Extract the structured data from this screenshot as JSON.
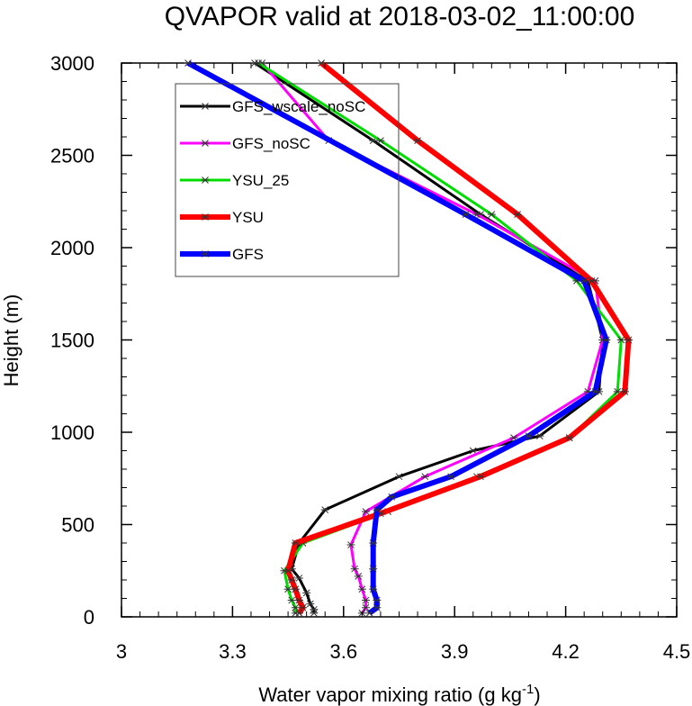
{
  "chart_data": {
    "type": "line",
    "title": "QVAPOR valid at 2018-03-02_11:00:00",
    "xlabel": "Water vapor mixing ratio (g kg",
    "xlabel_sup": "-1",
    "xlabel_end": ")",
    "ylabel": "Height (m)",
    "xlim": [
      3.0,
      4.5
    ],
    "ylim": [
      0,
      3000
    ],
    "xticks": [
      3.0,
      3.3,
      3.6,
      3.9,
      4.2,
      4.5
    ],
    "xtick_labels": [
      "3",
      "3.3",
      "3.6",
      "3.9",
      "4.2",
      "4.5"
    ],
    "yticks": [
      0,
      500,
      1000,
      1500,
      2000,
      2500,
      3000
    ],
    "ytick_labels": [
      "0",
      "500",
      "1000",
      "1500",
      "2000",
      "2500",
      "3000"
    ],
    "grid": false,
    "legend_position": "top-left",
    "series": [
      {
        "name": "GFS_wscale_noSC",
        "color": "#000000",
        "width": 3,
        "x": [
          3.52,
          3.52,
          3.51,
          3.5,
          3.48,
          3.46,
          3.48,
          3.55,
          3.75,
          3.95,
          4.13,
          4.29,
          4.3,
          4.26,
          3.97,
          3.68,
          3.36
        ],
        "y": [
          20,
          40,
          70,
          130,
          210,
          260,
          400,
          580,
          760,
          900,
          980,
          1220,
          1500,
          1820,
          2180,
          2580,
          3000
        ]
      },
      {
        "name": "GFS_noSC",
        "color": "#ff00ff",
        "width": 3,
        "x": [
          3.65,
          3.66,
          3.66,
          3.65,
          3.64,
          3.63,
          3.62,
          3.66,
          3.82,
          4.06,
          4.26,
          4.3,
          4.28,
          3.96,
          3.56,
          3.38
        ],
        "y": [
          20,
          50,
          90,
          150,
          220,
          260,
          390,
          570,
          760,
          970,
          1220,
          1500,
          1820,
          2180,
          2580,
          3000
        ]
      },
      {
        "name": "YSU_25",
        "color": "#00dd00",
        "width": 3,
        "x": [
          3.47,
          3.47,
          3.46,
          3.45,
          3.44,
          3.49,
          3.72,
          3.96,
          4.21,
          4.34,
          4.35,
          4.23,
          4.0,
          3.7,
          3.37
        ],
        "y": [
          20,
          50,
          90,
          150,
          250,
          400,
          570,
          760,
          970,
          1220,
          1500,
          1820,
          2180,
          2580,
          3000
        ]
      },
      {
        "name": "YSU",
        "color": "#ff0000",
        "width": 6,
        "x": [
          3.48,
          3.49,
          3.48,
          3.47,
          3.46,
          3.45,
          3.47,
          3.7,
          3.97,
          4.21,
          4.36,
          4.37,
          4.27,
          4.07,
          3.8,
          3.54
        ],
        "y": [
          20,
          50,
          90,
          150,
          200,
          250,
          400,
          560,
          760,
          970,
          1220,
          1500,
          1820,
          2180,
          2580,
          3000
        ]
      },
      {
        "name": "GFS",
        "color": "#0000ff",
        "width": 6,
        "x": [
          3.67,
          3.69,
          3.69,
          3.68,
          3.68,
          3.68,
          3.69,
          3.73,
          3.89,
          4.1,
          4.28,
          4.31,
          4.25,
          3.93,
          3.18
        ],
        "y": [
          20,
          50,
          90,
          150,
          260,
          400,
          580,
          650,
          760,
          980,
          1220,
          1500,
          1820,
          2180,
          3000
        ]
      }
    ]
  }
}
